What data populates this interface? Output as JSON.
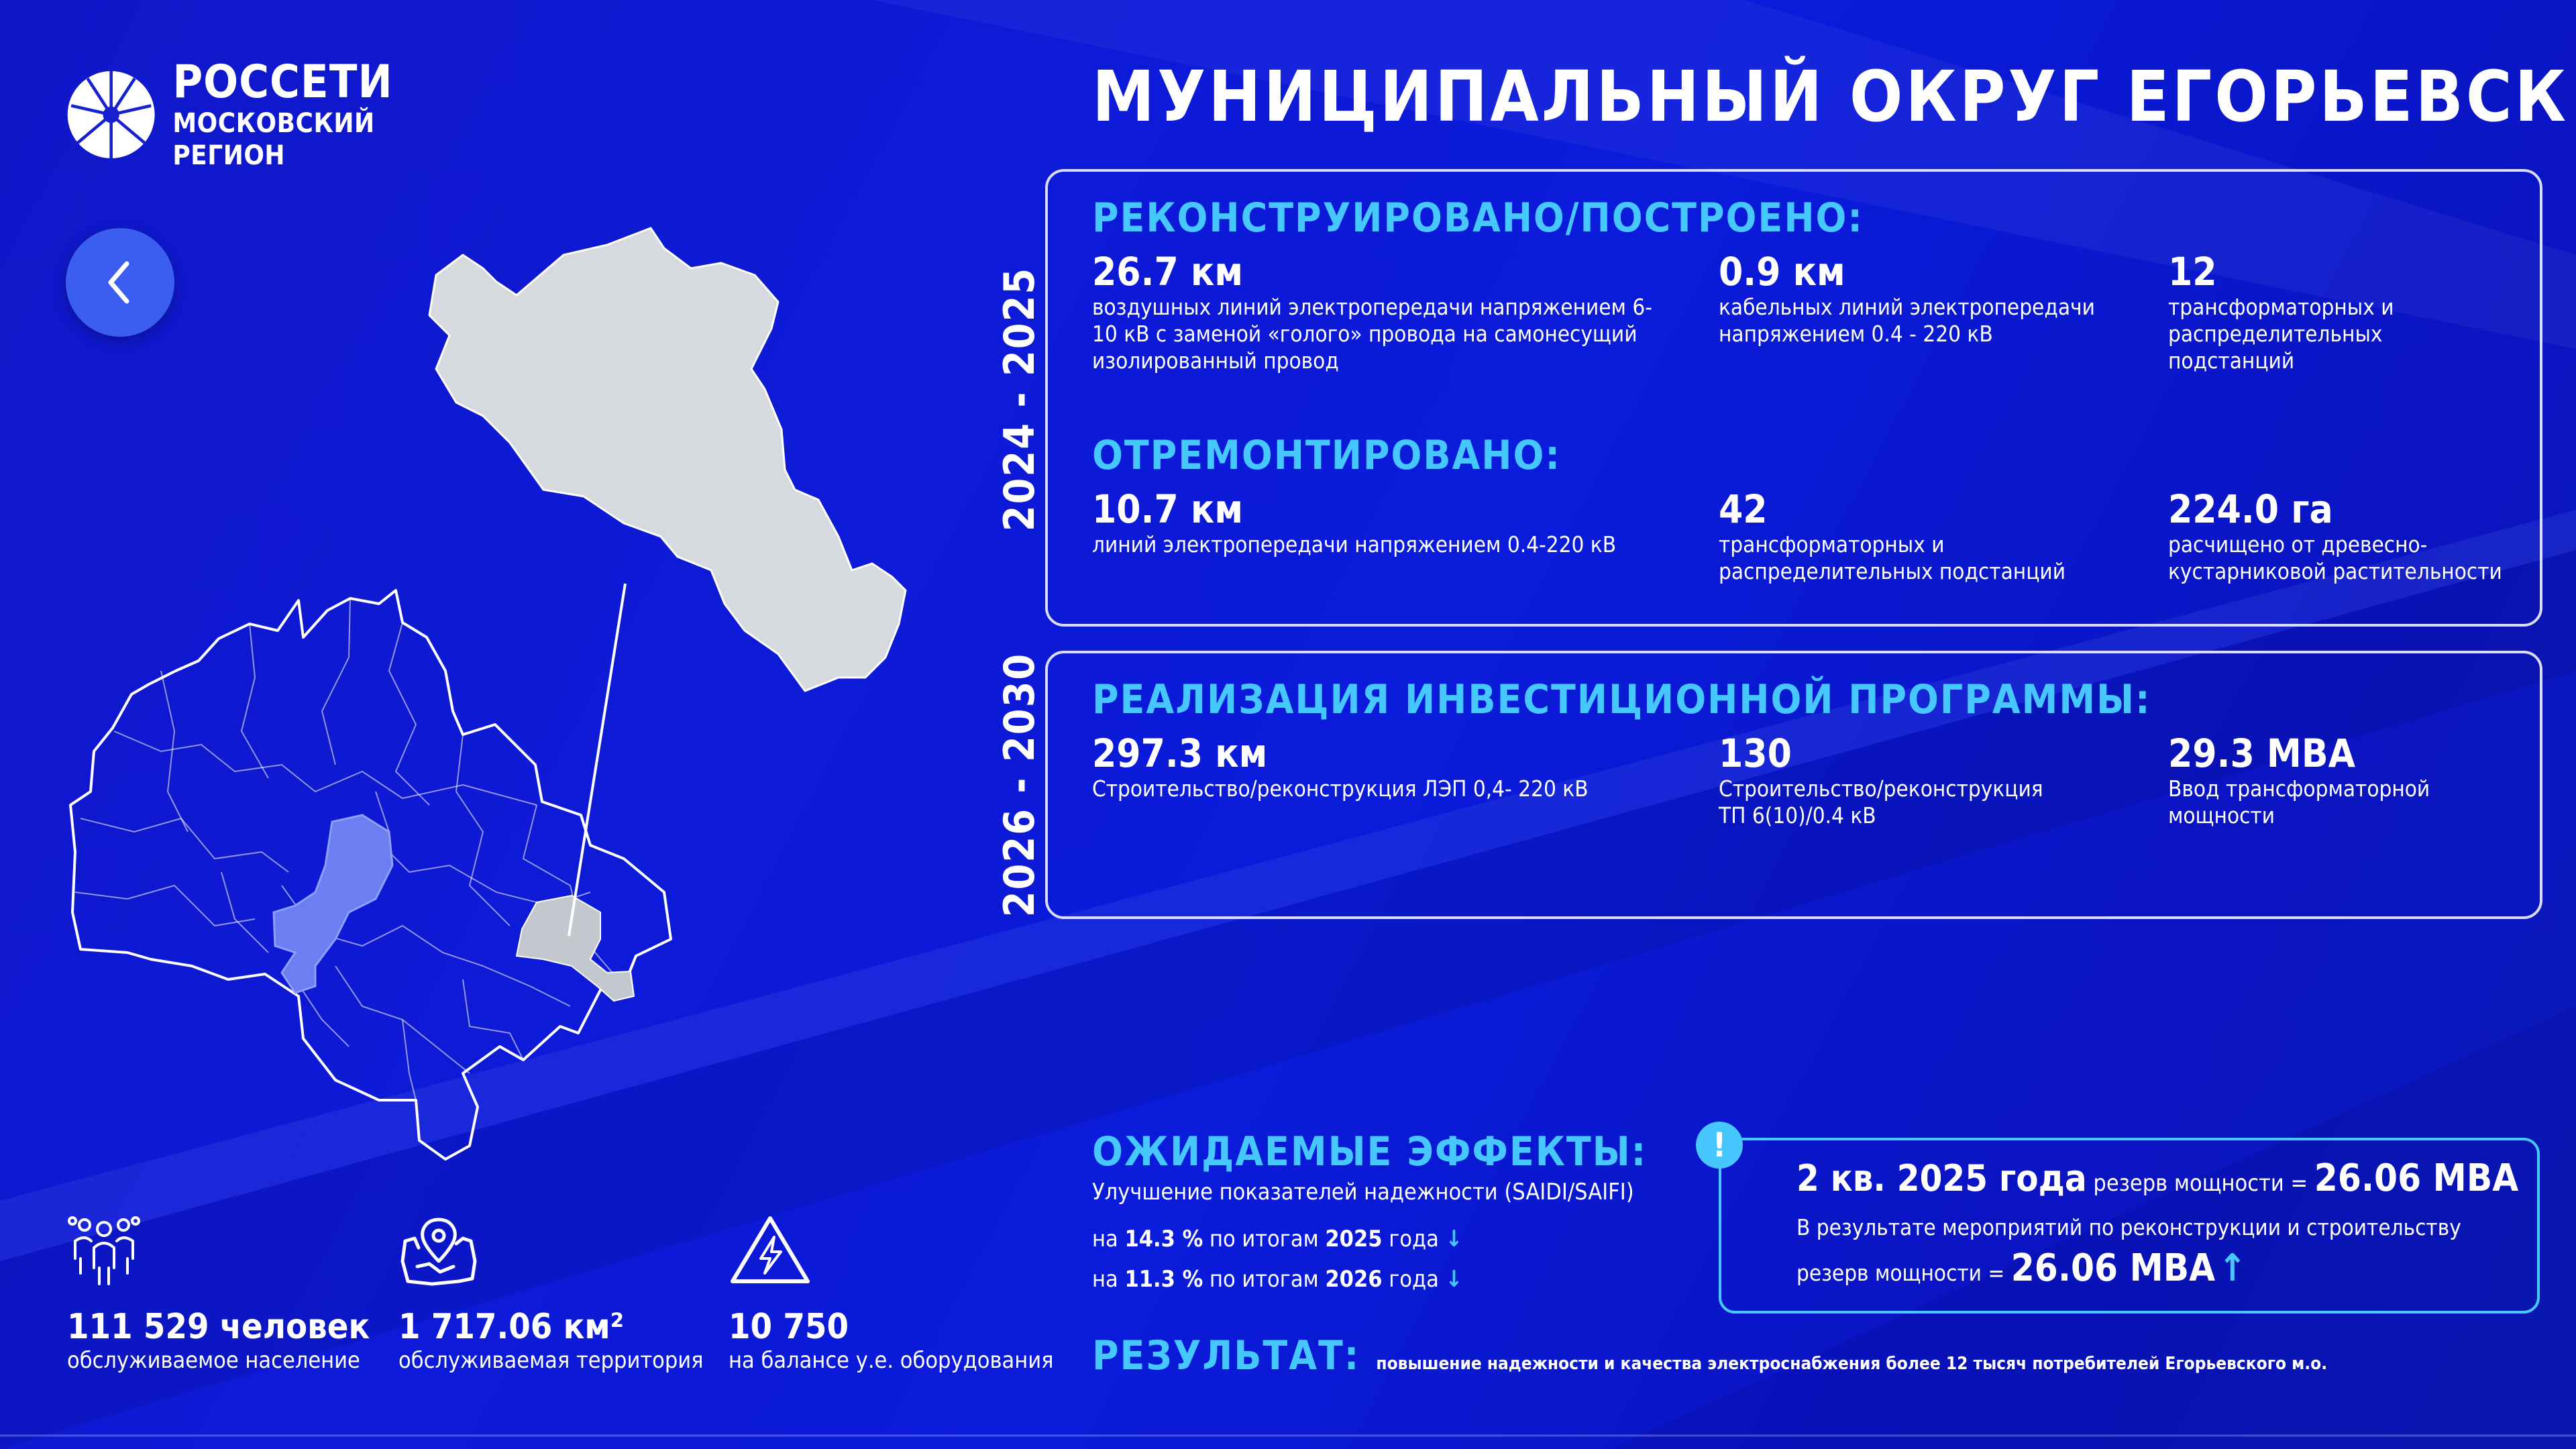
{
  "brand": {
    "name": "РОССЕТИ",
    "region": "МОСКОВСКИЙ РЕГИОН"
  },
  "title": "МУНИЦИПАЛЬНЫЙ ОКРУГ ЕГОРЬЕВСК",
  "period_1": {
    "years": "2024 - 2025",
    "built": {
      "title": "РЕКОНСТРУИРОВАНО/ПОСТРОЕНО:",
      "stats": [
        {
          "value": "26.7 км",
          "desc": "воздушных линий электропередачи напряжением 6-10 кВ с заменой «голого» провода на самонесущий изолированный провод"
        },
        {
          "value": "0.9 км",
          "desc": "кабельных линий электропередачи напряжением 0.4 - 220 кВ"
        },
        {
          "value": "12",
          "desc": "трансформаторных и распределительных подстанций"
        }
      ]
    },
    "repaired": {
      "title": "ОТРЕМОНТИРОВАНО:",
      "stats": [
        {
          "value": "10.7 км",
          "desc": "линий электропередачи напряжением 0.4-220 кВ"
        },
        {
          "value": "42",
          "desc": "трансформаторных и распределительных подстанций"
        },
        {
          "value": "224.0 га",
          "desc": "расчищено от древесно-кустарниковой растительности"
        }
      ]
    }
  },
  "period_2": {
    "years": "2026 - 2030",
    "title": "РЕАЛИЗАЦИЯ ИНВЕСТИЦИОННОЙ ПРОГРАММЫ:",
    "stats": [
      {
        "value": "297.3 км",
        "desc": "Строительство/реконструкция ЛЭП 0,4- 220 кВ"
      },
      {
        "value": "130",
        "desc": "Строительство/реконструкция ТП 6(10)/0.4 кВ"
      },
      {
        "value": "29.3 МВА",
        "desc": "Ввод трансформаторной мощности"
      }
    ]
  },
  "district_stats": [
    {
      "icon": "people-icon",
      "value": "111 529 человек",
      "desc": "обслуживаемое население"
    },
    {
      "icon": "map-pin-icon",
      "value": "1 717.06 км²",
      "desc": "обслуживаемая территория"
    },
    {
      "icon": "high-voltage-icon",
      "value": "10 750",
      "desc": "на балансе у.е. оборудования"
    }
  ],
  "effects": {
    "title": "ОЖИДАЕМЫЕ ЭФФЕКТЫ:",
    "subtitle": "Улучшение показателей надежности (SAIDI/SAIFI)",
    "lines": [
      {
        "prefix": "на ",
        "percent": "14.3 %",
        "mid": " по итогам ",
        "year": "2025",
        "suffix": " года",
        "arrow": "↓"
      },
      {
        "prefix": "на ",
        "percent": "11.3 %",
        "mid": " по итогам ",
        "year": "2026",
        "suffix": " года",
        "arrow": "↓"
      }
    ]
  },
  "reserve": {
    "badge": "!",
    "quarter": "2 кв. 2025 года",
    "label": " резерв мощности = ",
    "value": "26.06 МВА",
    "line2": "В результате мероприятий по реконструкции и строительству",
    "line3_label": "резерв мощности = ",
    "line3_value": "26.06 МВА",
    "arrow": "↑"
  },
  "result": {
    "title": "РЕЗУЛЬТАТ:",
    "text": "повышение надежности и качества электроснабжения более 12 тысяч потребителей Егорьевского м.о."
  },
  "colors": {
    "accent": "#46c8ff",
    "background": "#0d1ad8",
    "region_highlight": "#c3c8cf",
    "moscow_highlight": "#6c7ff2"
  }
}
